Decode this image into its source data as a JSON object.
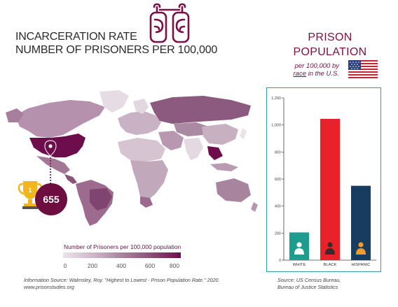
{
  "title": {
    "line1": "INCARCERATION RATE",
    "line2": "NUMBER OF PRISONERS PER 100,000"
  },
  "prison_panel": {
    "heading_line1": "PRISON",
    "heading_line2": "POPULATION",
    "sub_line1": "per 100,000 by",
    "sub_line2_em": "race",
    "sub_line2_rest": " in the U.S."
  },
  "usa_rate": "655",
  "map_legend": {
    "label": "Number of Prisoners per 100,000 population",
    "ticks": [
      "0",
      "200",
      "400",
      "600",
      "800"
    ]
  },
  "sources": {
    "left_line1": "Information Source: Walmsley, Roy. \"Highest to Lowest - Prison Population Rate.\" 2020.",
    "left_line2": "www.prisonstudies.org",
    "right_line1": "Source: US Census Bureau,",
    "right_line2": "Bureau of Justice Statistics"
  },
  "colors": {
    "accent": "#7a1046",
    "teal": "#3a9a9e",
    "white_bar": "#1e9c8e",
    "black_bar": "#e8212b",
    "hispanic_bar": "#173c60",
    "map_dark": "#6e0d4c",
    "map_light": "#e8dde5"
  },
  "chart_data": {
    "type": "bar",
    "categories": [
      "WHITE",
      "BLACK",
      "HISPANIC"
    ],
    "values": [
      205,
      1045,
      550
    ],
    "ylim": [
      0,
      1200
    ],
    "yticks": [
      "0",
      "200",
      "400",
      "600",
      "800",
      "1,000",
      "1,200"
    ],
    "ytick_values": [
      0,
      200,
      400,
      600,
      800,
      1000,
      1200
    ],
    "grid": false,
    "xlabel": "",
    "ylabel": ""
  }
}
